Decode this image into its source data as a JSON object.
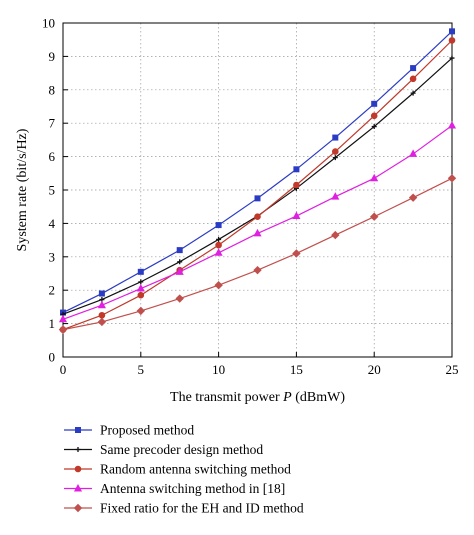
{
  "chart_data": {
    "type": "line",
    "title": "",
    "xlabel": "The transmit power P (dBmW)",
    "xlabel_parts": {
      "prefix": "The transmit power ",
      "var": "P",
      "suffix": " (dBmW)"
    },
    "ylabel": "System rate (bit/s/Hz)",
    "xlim": [
      0,
      25
    ],
    "ylim": [
      0,
      10
    ],
    "xticks": [
      0,
      5,
      10,
      15,
      20,
      25
    ],
    "yticks": [
      0,
      1,
      2,
      3,
      4,
      5,
      6,
      7,
      8,
      9,
      10
    ],
    "grid": true,
    "legend_position": "below",
    "x": [
      0,
      2.5,
      5,
      7.5,
      10,
      12.5,
      15,
      17.5,
      20,
      22.5,
      25
    ],
    "series": [
      {
        "name": "Proposed method",
        "color": "#2b3cc4",
        "marker": "square",
        "values": [
          1.33,
          1.9,
          2.55,
          3.2,
          3.95,
          4.75,
          5.62,
          6.57,
          7.58,
          8.65,
          9.75
        ]
      },
      {
        "name": "Same precoder design method",
        "color": "#111111",
        "marker": "plus",
        "values": [
          1.28,
          1.72,
          2.25,
          2.85,
          3.52,
          4.22,
          5.05,
          5.97,
          6.9,
          7.9,
          8.95
        ]
      },
      {
        "name": "Random antenna switching method",
        "color": "#c0392b",
        "marker": "circle",
        "values": [
          0.82,
          1.25,
          1.85,
          2.6,
          3.35,
          4.2,
          5.15,
          6.15,
          7.22,
          8.33,
          9.48
        ]
      },
      {
        "name": "Antenna switching method in [18]",
        "color": "#e020e0",
        "marker": "triangle",
        "values": [
          1.13,
          1.55,
          2.05,
          2.55,
          3.12,
          3.7,
          4.22,
          4.8,
          5.35,
          6.08,
          6.93
        ]
      },
      {
        "name": "Fixed ratio for the EH and ID method",
        "color": "#c0504d",
        "marker": "diamond",
        "values": [
          0.82,
          1.05,
          1.38,
          1.75,
          2.15,
          2.6,
          3.1,
          3.65,
          4.2,
          4.77,
          5.35
        ]
      }
    ]
  }
}
